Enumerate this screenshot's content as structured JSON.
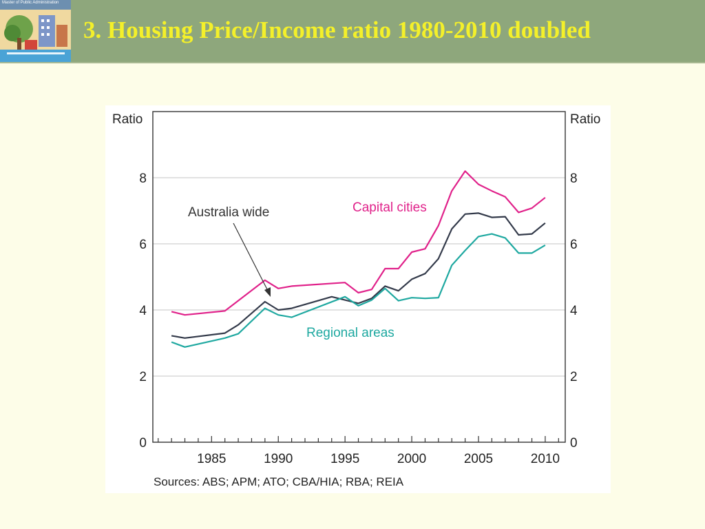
{
  "header": {
    "logo_text": "Master of Public Administration",
    "title": "3. Housing Price/Income ratio 1980-2010 doubled"
  },
  "colors": {
    "header_bg": "#8ea77c",
    "title_text": "#f4f02a",
    "capital": "#e0218a",
    "australia": "#333a4a",
    "regional": "#1ea8a0"
  },
  "chart_data": {
    "type": "line",
    "ylabel_left": "Ratio",
    "ylabel_right": "Ratio",
    "ylim": [
      0,
      10
    ],
    "yticks": [
      0,
      2,
      4,
      6,
      8
    ],
    "xlim": [
      1980.6,
      2011.5
    ],
    "xticks": [
      1985,
      1990,
      1995,
      2000,
      2005,
      2010
    ],
    "source": "Sources: ABS; APM; ATO; CBA/HIA; RBA; REIA",
    "series": [
      {
        "name": "Capital cities",
        "x": [
          1982,
          1983,
          1986,
          1989,
          1990,
          1991,
          1995,
          1996,
          1997,
          1998,
          1999,
          2000,
          2001,
          2002,
          2003,
          2004,
          2005,
          2006,
          2007,
          2008,
          2009,
          2010
        ],
        "values": [
          3.95,
          3.85,
          3.97,
          4.9,
          4.65,
          4.72,
          4.83,
          4.52,
          4.62,
          5.25,
          5.25,
          5.75,
          5.85,
          6.55,
          7.6,
          8.2,
          7.8,
          7.6,
          7.42,
          6.95,
          7.08,
          7.4
        ]
      },
      {
        "name": "Australia wide",
        "x": [
          1982,
          1983,
          1986,
          1987,
          1989,
          1990,
          1991,
          1994,
          1996,
          1997,
          1998,
          1999,
          2000,
          2001,
          2002,
          2003,
          2004,
          2005,
          2006,
          2007,
          2008,
          2009,
          2010
        ],
        "values": [
          3.22,
          3.15,
          3.3,
          3.55,
          4.25,
          4.0,
          4.05,
          4.4,
          4.2,
          4.35,
          4.72,
          4.58,
          4.93,
          5.1,
          5.55,
          6.45,
          6.9,
          6.93,
          6.8,
          6.82,
          6.27,
          6.3,
          6.63
        ]
      },
      {
        "name": "Regional areas",
        "x": [
          1982,
          1983,
          1986,
          1987,
          1989,
          1990,
          1991,
          1995,
          1996,
          1997,
          1998,
          1999,
          2000,
          2001,
          2002,
          2003,
          2004,
          2005,
          2006,
          2007,
          2008,
          2009,
          2010
        ],
        "values": [
          3.03,
          2.88,
          3.15,
          3.28,
          4.05,
          3.85,
          3.78,
          4.4,
          4.13,
          4.3,
          4.65,
          4.28,
          4.37,
          4.35,
          4.37,
          5.35,
          5.8,
          6.22,
          6.3,
          6.18,
          5.72,
          5.72,
          5.96
        ]
      }
    ],
    "annotations": [
      {
        "text": "Australia wide"
      },
      {
        "text": "Capital cities"
      },
      {
        "text": "Regional areas"
      }
    ]
  }
}
